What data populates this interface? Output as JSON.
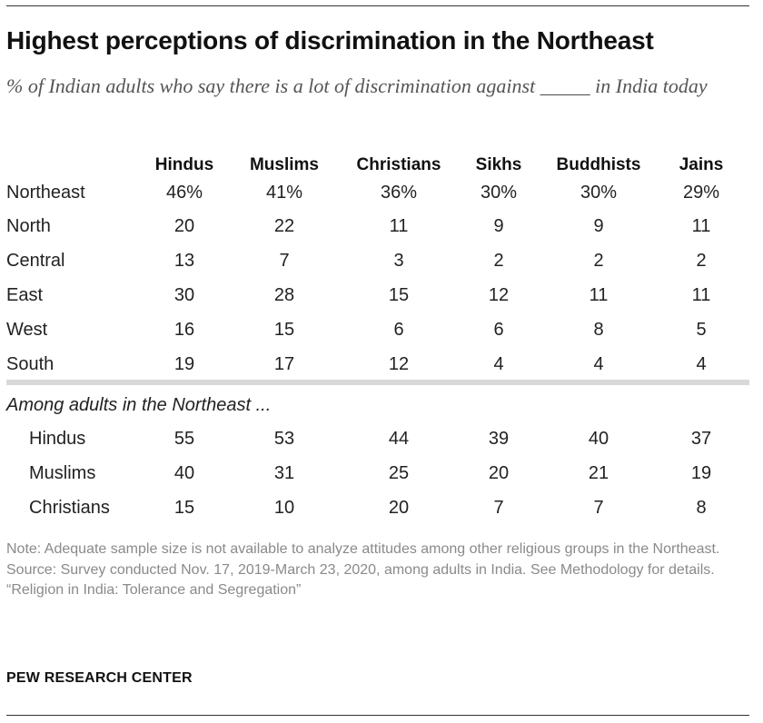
{
  "title": "Highest perceptions of discrimination in the Northeast",
  "subtitle": "% of Indian adults who say there is a lot of discrimination against _____ in India today",
  "notes": {
    "note": "Note: Adequate sample size is not available to analyze attitudes among other religious groups in the Northeast.",
    "source": "Source: Survey conducted Nov. 17, 2019-March 23, 2020, among adults in India. See Methodology for details.",
    "report": "“Religion in India: Tolerance and Segregation”"
  },
  "brand": "PEW RESEARCH CENTER",
  "chart_data": {
    "type": "table",
    "title": "Highest perceptions of discrimination in the Northeast",
    "subtitle": "% of Indian adults who say there is a lot of discrimination against _____ in India today",
    "columns": [
      "Hindus",
      "Muslims",
      "Christians",
      "Sikhs",
      "Buddhists",
      "Jains"
    ],
    "rows": [
      {
        "label": "Northeast",
        "values": [
          "46%",
          "41%",
          "36%",
          "30%",
          "30%",
          "29%"
        ]
      },
      {
        "label": "North",
        "values": [
          "20",
          "22",
          "11",
          "9",
          "9",
          "11"
        ]
      },
      {
        "label": "Central",
        "values": [
          "13",
          "7",
          "3",
          "2",
          "2",
          "2"
        ]
      },
      {
        "label": "East",
        "values": [
          "30",
          "28",
          "15",
          "12",
          "11",
          "11"
        ]
      },
      {
        "label": "West",
        "values": [
          "16",
          "15",
          "6",
          "6",
          "8",
          "5"
        ]
      },
      {
        "label": "South",
        "values": [
          "19",
          "17",
          "12",
          "4",
          "4",
          "4"
        ]
      }
    ],
    "section_label": "Among adults in the Northeast ...",
    "section_rows": [
      {
        "label": "Hindus",
        "values": [
          "55",
          "53",
          "44",
          "39",
          "40",
          "37"
        ]
      },
      {
        "label": "Muslims",
        "values": [
          "40",
          "31",
          "25",
          "20",
          "21",
          "19"
        ]
      },
      {
        "label": "Christians",
        "values": [
          "15",
          "10",
          "20",
          "7",
          "7",
          "8"
        ]
      }
    ]
  }
}
